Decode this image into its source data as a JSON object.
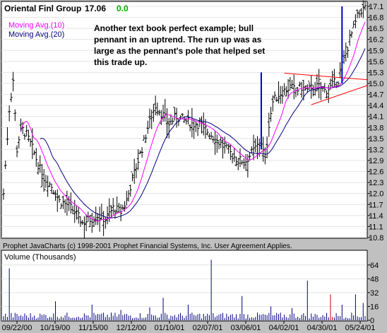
{
  "header": {
    "symbol_name": "Oriental Finl Group",
    "last_price": "17.06",
    "change": "0.0"
  },
  "annotation": "Another text book perfect example; bull pennant in an uptrend. The run up was as large as the pennant's pole that helped set this trade up.",
  "copyright": "Prophet JavaCharts (c) 1998-2001 Prophet Financial Systems, Inc.  User Agreement Applies.",
  "colors": {
    "background": "#c0c0c0",
    "plot_bg": "#ffffff",
    "price_bars": "#000000",
    "ma10": "#ff00ff",
    "ma20": "#000080",
    "volume": "#000080",
    "pole_lines": "#0000cc",
    "pennant_lines": "#ff0000",
    "header_change": "#00aa00"
  },
  "chart_data": [
    {
      "type": "ohlc",
      "legend": [
        "Moving Avg.(10)",
        "Moving Avg.(20)"
      ],
      "ylim": [
        10.8,
        17.1
      ],
      "yticks": [
        10.8,
        11.1,
        11.4,
        11.7,
        12.0,
        12.3,
        12.6,
        12.9,
        13.2,
        13.5,
        13.8,
        14.1,
        14.4,
        14.7,
        15.0,
        15.3,
        15.6,
        15.9,
        16.2,
        16.5,
        16.8,
        17.1
      ],
      "x_labels": [
        "09/22/00",
        "10/19/00",
        "11/15/00",
        "12/12/00",
        "01/10/01",
        "02/07/01",
        "03/06/01",
        "04/02/01",
        "04/30/01",
        "05/24/01"
      ],
      "close_path": [
        [
          0,
          12.0
        ],
        [
          3,
          14.3
        ],
        [
          5,
          15.1
        ],
        [
          7,
          13.2
        ],
        [
          9,
          13.8
        ],
        [
          12,
          13.6
        ],
        [
          16,
          13.1
        ],
        [
          20,
          12.5
        ],
        [
          25,
          12.2
        ],
        [
          29,
          11.8
        ],
        [
          33,
          11.7
        ],
        [
          37,
          11.5
        ],
        [
          41,
          11.2
        ],
        [
          45,
          11.3
        ],
        [
          49,
          11.4
        ],
        [
          53,
          11.3
        ],
        [
          57,
          11.6
        ],
        [
          61,
          11.5
        ],
        [
          64,
          11.8
        ],
        [
          67,
          12.4
        ],
        [
          70,
          12.9
        ],
        [
          73,
          13.4
        ],
        [
          76,
          14.0
        ],
        [
          79,
          14.4
        ],
        [
          82,
          14.2
        ],
        [
          86,
          13.9
        ],
        [
          90,
          14.1
        ],
        [
          94,
          14.0
        ],
        [
          98,
          13.9
        ],
        [
          102,
          13.9
        ],
        [
          106,
          13.7
        ],
        [
          110,
          13.5
        ],
        [
          114,
          13.3
        ],
        [
          118,
          13.1
        ],
        [
          122,
          12.9
        ],
        [
          126,
          12.9
        ],
        [
          129,
          13.1
        ],
        [
          132,
          13.3
        ],
        [
          134,
          13.4
        ],
        [
          136,
          12.9
        ],
        [
          138,
          13.9
        ],
        [
          140,
          14.5
        ],
        [
          143,
          14.7
        ],
        [
          146,
          14.8
        ],
        [
          149,
          14.9
        ],
        [
          152,
          14.8
        ],
        [
          155,
          14.9
        ],
        [
          158,
          14.8
        ],
        [
          161,
          14.9
        ],
        [
          164,
          14.9
        ],
        [
          167,
          14.8
        ],
        [
          170,
          14.9
        ],
        [
          172,
          15.0
        ],
        [
          174,
          15.1
        ],
        [
          176,
          15.5
        ],
        [
          178,
          15.8
        ],
        [
          180,
          16.2
        ],
        [
          182,
          16.5
        ],
        [
          184,
          16.8
        ],
        [
          186,
          17.0
        ],
        [
          188,
          17.06
        ]
      ],
      "pole_lines": [
        {
          "bar": 134,
          "from": 13.2,
          "to": 15.3
        },
        {
          "bar": 176,
          "from": 15.0,
          "to": 17.1
        }
      ],
      "pennant": {
        "upper": [
          [
            146,
            15.28
          ],
          [
            188,
            15.1
          ]
        ],
        "lower": [
          [
            160,
            14.42
          ],
          [
            188,
            14.95
          ]
        ]
      }
    },
    {
      "type": "bar",
      "title": "Volume (Thousands)",
      "ylim": [
        0,
        72
      ],
      "yticks": [
        0,
        16,
        32,
        48,
        64
      ],
      "spikes": [
        [
          3,
          60
        ],
        [
          27,
          22
        ],
        [
          46,
          18
        ],
        [
          61,
          12
        ],
        [
          76,
          15
        ],
        [
          83,
          26
        ],
        [
          96,
          18
        ],
        [
          108,
          70
        ],
        [
          124,
          28
        ],
        [
          139,
          16
        ],
        [
          150,
          14
        ],
        [
          158,
          46
        ],
        [
          170,
          30
        ],
        [
          176,
          18
        ],
        [
          183,
          30
        ],
        [
          187,
          20
        ]
      ]
    }
  ]
}
